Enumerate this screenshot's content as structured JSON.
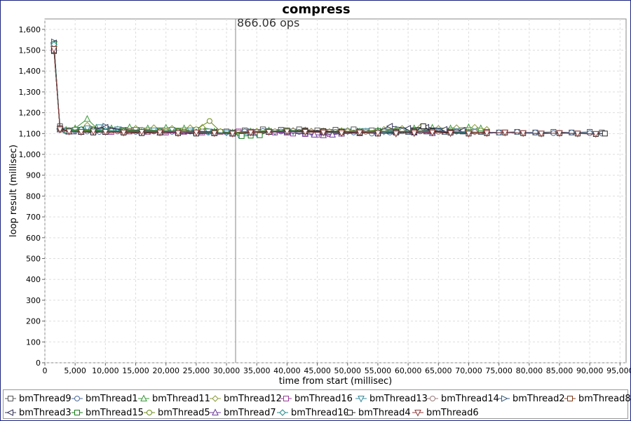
{
  "chart_data": {
    "type": "line",
    "title": "compress",
    "xlabel": "time from start (millisec)",
    "ylabel": "loop result (millisec)",
    "xlim": [
      0,
      96000
    ],
    "ylim": [
      0,
      1650
    ],
    "x_ticks": [
      "0",
      "5,000",
      "10,000",
      "15,000",
      "20,000",
      "25,000",
      "30,000",
      "35,000",
      "40,000",
      "45,000",
      "50,000",
      "55,000",
      "60,000",
      "65,000",
      "70,000",
      "75,000",
      "80,000",
      "85,000",
      "90,000",
      "95,000"
    ],
    "y_ticks": [
      "0",
      "100",
      "200",
      "300",
      "400",
      "500",
      "600",
      "700",
      "800",
      "900",
      "1,000",
      "1,100",
      "1,200",
      "1,300",
      "1,400",
      "1,500",
      "1,600"
    ],
    "grid": true,
    "legend_position": "bottom",
    "annotation": {
      "x": 31500,
      "label": "866.06 ops"
    },
    "series": [
      {
        "name": "bmThread9",
        "color": "#555555",
        "marker": "square",
        "x": [
          1500,
          2500,
          3500,
          4800,
          6000,
          8000,
          10000,
          13000,
          16000,
          19000,
          22000,
          25000,
          28000,
          30000,
          33000,
          36000,
          39000,
          42000,
          45000,
          48000,
          51000,
          54000,
          57000,
          60000,
          63000,
          66000,
          69000,
          72000,
          75000,
          78000,
          81000,
          84000,
          87000,
          90000,
          92000
        ],
        "y": [
          1495,
          1135,
          1115,
          1110,
          1115,
          1110,
          1112,
          1108,
          1110,
          1108,
          1110,
          1108,
          1105,
          1110,
          1115,
          1120,
          1118,
          1120,
          1115,
          1118,
          1120,
          1115,
          1110,
          1108,
          1110,
          1108,
          1110,
          1108,
          1105,
          1108,
          1105,
          1108,
          1105,
          1108,
          1105
        ]
      },
      {
        "name": "bmThread1",
        "color": "#4a6a99",
        "marker": "circle",
        "x": [
          1500,
          2500,
          3500,
          5000,
          7000,
          9000,
          12000,
          15000,
          18000,
          21000,
          24000,
          27000,
          30000,
          33000,
          36000,
          39000,
          42000,
          45000,
          48000,
          51000,
          54000,
          57000,
          60000,
          63000,
          66000,
          69000,
          72000,
          75000,
          78000,
          81000,
          84000,
          87000,
          90000,
          92000
        ],
        "y": [
          1525,
          1125,
          1110,
          1112,
          1110,
          1108,
          1110,
          1108,
          1110,
          1108,
          1110,
          1105,
          1105,
          1110,
          1112,
          1110,
          1108,
          1105,
          1108,
          1105,
          1100,
          1105,
          1108,
          1110,
          1108,
          1110,
          1108,
          1105,
          1108,
          1105,
          1102,
          1105,
          1102,
          1100
        ]
      },
      {
        "name": "bmThread11",
        "color": "#3a9a3a",
        "marker": "triangle-up",
        "x": [
          1500,
          2500,
          3500,
          5000,
          7000,
          8500,
          11000,
          14000,
          17000,
          20000,
          23000,
          26000,
          28000,
          31000,
          34000,
          37000,
          40000,
          43000,
          46000,
          49000,
          52000,
          55000,
          58000,
          61000,
          64000,
          67000,
          70000,
          72000
        ],
        "y": [
          1530,
          1120,
          1118,
          1125,
          1170,
          1128,
          1125,
          1130,
          1125,
          1128,
          1125,
          1128,
          1110,
          1105,
          1110,
          1115,
          1112,
          1115,
          1110,
          1112,
          1110,
          1115,
          1120,
          1125,
          1128,
          1125,
          1130,
          1125
        ]
      },
      {
        "name": "bmThread12",
        "color": "#8a9a3a",
        "marker": "diamond",
        "x": [
          1500,
          2500,
          3500,
          5000,
          7000,
          9000,
          12000,
          15000,
          18000,
          21000,
          24000,
          26000,
          29000,
          32000,
          35000,
          38000,
          41000,
          44000,
          47000,
          50000,
          53000,
          56000,
          59000,
          62000,
          65000,
          68000,
          71000,
          73000
        ],
        "y": [
          1520,
          1118,
          1115,
          1120,
          1140,
          1125,
          1122,
          1125,
          1128,
          1125,
          1128,
          1130,
          1110,
          1108,
          1112,
          1110,
          1115,
          1112,
          1110,
          1115,
          1112,
          1120,
          1125,
          1130,
          1125,
          1128,
          1130,
          1120
        ]
      },
      {
        "name": "bmThread16",
        "color": "#9a3a9a",
        "marker": "square",
        "x": [
          1500,
          2500,
          4000,
          6000,
          8000,
          11000,
          14000,
          17000,
          20000,
          23000,
          26000,
          29000,
          32000,
          35000,
          38000,
          41000,
          43000,
          45000,
          47000,
          49000,
          52000,
          55000,
          58000,
          61000,
          64000,
          67000,
          70000
        ],
        "y": [
          1510,
          1122,
          1110,
          1108,
          1110,
          1108,
          1110,
          1108,
          1105,
          1108,
          1105,
          1108,
          1110,
          1108,
          1105,
          1100,
          1098,
          1095,
          1098,
          1100,
          1102,
          1105,
          1108,
          1105,
          1108,
          1105,
          1102
        ]
      },
      {
        "name": "bmThread13",
        "color": "#3a8a9a",
        "marker": "triangle-down",
        "x": [
          1500,
          2500,
          3500,
          5000,
          7000,
          9000,
          12000,
          15000,
          18000,
          21000,
          24000,
          27000,
          30000,
          32000,
          35000,
          38000,
          41000,
          44000,
          47000,
          50000,
          53000,
          56000,
          59000,
          62000,
          65000,
          68000,
          71000
        ],
        "y": [
          1515,
          1120,
          1112,
          1118,
          1125,
          1130,
          1120,
          1118,
          1115,
          1118,
          1115,
          1110,
          1105,
          1095,
          1100,
          1108,
          1110,
          1105,
          1108,
          1110,
          1112,
          1110,
          1115,
          1118,
          1115,
          1112,
          1110
        ]
      },
      {
        "name": "bmThread14",
        "color": "#9a7a7a",
        "marker": "circle",
        "x": [
          1500,
          2500,
          4000,
          6000,
          8000,
          11000,
          14000,
          17000,
          20000,
          23000,
          26000,
          29000,
          32000,
          35000,
          38000,
          41000,
          44000,
          47000,
          50000,
          53000,
          56000,
          59000,
          62000,
          65000,
          68000,
          71000
        ],
        "y": [
          1505,
          1118,
          1110,
          1112,
          1110,
          1112,
          1110,
          1108,
          1110,
          1108,
          1110,
          1108,
          1105,
          1108,
          1110,
          1112,
          1110,
          1108,
          1110,
          1108,
          1110,
          1112,
          1110,
          1108,
          1110,
          1108
        ]
      },
      {
        "name": "bmThread2",
        "color": "#3a5a7a",
        "marker": "triangle-right",
        "x": [
          1500,
          2500,
          4000,
          6000,
          8000,
          10000,
          13000,
          16000,
          19000,
          22000,
          25000,
          28000,
          31000,
          34000,
          37000,
          40000,
          43000,
          46000,
          49000,
          52000,
          55000,
          58000,
          61000,
          64000,
          67000,
          70000,
          73000
        ],
        "y": [
          1540,
          1125,
          1112,
          1115,
          1120,
          1135,
          1118,
          1115,
          1112,
          1110,
          1112,
          1108,
          1105,
          1110,
          1112,
          1115,
          1110,
          1108,
          1110,
          1112,
          1110,
          1108,
          1112,
          1115,
          1110,
          1108,
          1105
        ]
      },
      {
        "name": "bmThread8",
        "color": "#7a3a1a",
        "marker": "square",
        "x": [
          1500,
          2500,
          4000,
          6000,
          8000,
          10000,
          13000,
          16000,
          19000,
          22000,
          25000,
          28000,
          31000,
          34000,
          37000,
          40000,
          43000,
          46000,
          49000,
          52000,
          55000,
          58000,
          61000,
          64000,
          67000,
          70000,
          73000
        ],
        "y": [
          1500,
          1120,
          1110,
          1108,
          1110,
          1108,
          1105,
          1108,
          1105,
          1108,
          1110,
          1105,
          1100,
          1105,
          1110,
          1112,
          1115,
          1112,
          1110,
          1108,
          1105,
          1108,
          1110,
          1112,
          1108,
          1105,
          1108
        ]
      },
      {
        "name": "bmThread3",
        "color": "#333355",
        "marker": "triangle-left",
        "x": [
          1500,
          2500,
          4000,
          6000,
          8000,
          10000,
          13000,
          16000,
          19000,
          22000,
          25000,
          28000,
          31000,
          34000,
          37000,
          40000,
          43000,
          46000,
          49000,
          52000,
          55000,
          57000,
          60000,
          63000,
          66000,
          69000
        ],
        "y": [
          1535,
          1122,
          1112,
          1115,
          1118,
          1130,
          1115,
          1112,
          1110,
          1108,
          1110,
          1108,
          1105,
          1108,
          1110,
          1112,
          1110,
          1105,
          1108,
          1110,
          1112,
          1135,
          1125,
          1130,
          1120,
          1115
        ]
      },
      {
        "name": "bmThread15",
        "color": "#1a7a1a",
        "marker": "square",
        "x": [
          1500,
          2500,
          4000,
          6000,
          8000,
          10000,
          13000,
          16000,
          19000,
          22000,
          25000,
          28000,
          31000,
          32500,
          34000,
          35500,
          37000,
          40000,
          43000,
          46000,
          49000,
          52000,
          55000,
          58000,
          61000,
          64000,
          67000
        ],
        "y": [
          1530,
          1120,
          1115,
          1118,
          1115,
          1110,
          1112,
          1110,
          1108,
          1110,
          1108,
          1105,
          1100,
          1088,
          1090,
          1092,
          1110,
          1115,
          1112,
          1110,
          1108,
          1110,
          1112,
          1110,
          1108,
          1110,
          1108
        ]
      },
      {
        "name": "bmThread5",
        "color": "#6a8a1a",
        "marker": "circle",
        "x": [
          1500,
          2500,
          4000,
          6000,
          8000,
          10000,
          13000,
          16000,
          19000,
          22000,
          25000,
          27200,
          29000,
          31000,
          34000,
          37000,
          40000,
          43000,
          46000,
          49000,
          52000,
          55000,
          58000,
          61000,
          64000,
          67000,
          70000
        ],
        "y": [
          1520,
          1118,
          1112,
          1115,
          1112,
          1110,
          1115,
          1118,
          1115,
          1112,
          1120,
          1160,
          1110,
          1105,
          1110,
          1112,
          1110,
          1108,
          1110,
          1112,
          1110,
          1108,
          1110,
          1112,
          1110,
          1108,
          1110
        ]
      },
      {
        "name": "bmThread7",
        "color": "#6a3a9a",
        "marker": "triangle-up",
        "x": [
          1500,
          2500,
          4000,
          6000,
          8000,
          10000,
          13000,
          16000,
          19000,
          22000,
          25000,
          28000,
          31000,
          34000,
          37000,
          40000,
          43000,
          44500,
          46000,
          47500,
          49000,
          52000,
          55000,
          58000,
          61000,
          64000
        ],
        "y": [
          1510,
          1120,
          1110,
          1108,
          1110,
          1108,
          1110,
          1108,
          1105,
          1108,
          1105,
          1102,
          1100,
          1105,
          1108,
          1105,
          1100,
          1095,
          1092,
          1095,
          1100,
          1102,
          1105,
          1108,
          1105,
          1102
        ]
      },
      {
        "name": "bmThread10",
        "color": "#1a8a8a",
        "marker": "diamond",
        "x": [
          1500,
          2500,
          4000,
          6000,
          8000,
          10000,
          13000,
          16000,
          19000,
          22000,
          25000,
          28000,
          31000,
          34000,
          37000,
          40000,
          43000,
          46000,
          49000,
          52000,
          55000,
          58000,
          61000,
          64000,
          67000,
          70000
        ],
        "y": [
          1528,
          1122,
          1115,
          1120,
          1118,
          1115,
          1112,
          1110,
          1112,
          1110,
          1108,
          1105,
          1102,
          1105,
          1108,
          1110,
          1108,
          1105,
          1108,
          1110,
          1108,
          1105,
          1108,
          1110,
          1108,
          1105
        ]
      },
      {
        "name": "bmThread4",
        "color": "#222222",
        "marker": "square",
        "x": [
          1500,
          2500,
          4000,
          6000,
          8000,
          10000,
          13000,
          16000,
          19000,
          22000,
          25000,
          28000,
          31000,
          34000,
          37000,
          40000,
          43000,
          46000,
          49000,
          52000,
          55000,
          58000,
          61000,
          62500,
          64000,
          67000,
          70000,
          73000,
          76000,
          79000,
          82000,
          85000,
          88000,
          91000,
          92500
        ],
        "y": [
          1500,
          1125,
          1110,
          1108,
          1105,
          1108,
          1105,
          1102,
          1105,
          1102,
          1100,
          1102,
          1100,
          1105,
          1108,
          1110,
          1112,
          1110,
          1108,
          1105,
          1100,
          1105,
          1108,
          1135,
          1110,
          1105,
          1100,
          1102,
          1105,
          1102,
          1100,
          1102,
          1100,
          1098,
          1100
        ]
      },
      {
        "name": "bmThread6",
        "color": "#8a3a3a",
        "marker": "triangle-down",
        "x": [
          1500,
          2500,
          4000,
          6000,
          8000,
          10000,
          13000,
          16000,
          19000,
          22000,
          25000,
          28000,
          31000,
          34000,
          37000,
          40000,
          43000,
          46000,
          49000,
          52000,
          55000,
          58000,
          61000,
          64000,
          67000,
          70000,
          73000,
          76000,
          79000,
          82000,
          85000,
          88000,
          91000
        ],
        "y": [
          1505,
          1120,
          1110,
          1108,
          1110,
          1108,
          1105,
          1108,
          1105,
          1102,
          1105,
          1102,
          1100,
          1105,
          1108,
          1110,
          1108,
          1105,
          1102,
          1105,
          1102,
          1100,
          1102,
          1105,
          1102,
          1100,
          1102,
          1105,
          1102,
          1100,
          1102,
          1100,
          1098
        ]
      }
    ]
  }
}
